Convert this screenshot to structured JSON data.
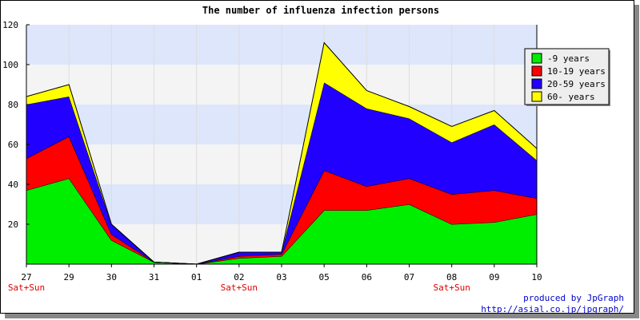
{
  "chart_data": {
    "type": "area",
    "stacked": true,
    "title": "The number of influenza infection persons",
    "xlabel": "",
    "ylabel": "",
    "categories": [
      "27",
      "29",
      "30",
      "31",
      "01",
      "02",
      "03",
      "05",
      "06",
      "07",
      "08",
      "09",
      "10"
    ],
    "category_notes": [
      "Sat+Sun",
      "",
      "",
      "",
      "",
      "Sat+Sun",
      "",
      "",
      "",
      "",
      "Sat+Sun",
      "",
      ""
    ],
    "y_ticks": [
      20,
      40,
      60,
      80,
      100,
      120
    ],
    "ylim": [
      0,
      120
    ],
    "grid": true,
    "legend_position": "right",
    "series": [
      {
        "name": "-9 years",
        "color": "#00ee00",
        "values": [
          37,
          43,
          12,
          1,
          0,
          3,
          4,
          27,
          27,
          30,
          20,
          21,
          25
        ]
      },
      {
        "name": "10-19 years",
        "color": "#ff0000",
        "values": [
          16,
          21,
          3,
          0,
          0,
          1,
          1,
          20,
          12,
          13,
          15,
          16,
          8
        ]
      },
      {
        "name": "20-59 years",
        "color": "#2200ff",
        "values": [
          27,
          20,
          5,
          0,
          0,
          2,
          1,
          44,
          39,
          30,
          26,
          33,
          19
        ]
      },
      {
        "name": "60- years",
        "color": "#ffff00",
        "values": [
          4,
          6,
          0,
          0,
          0,
          0,
          0,
          20,
          9,
          6,
          8,
          7,
          6
        ]
      }
    ],
    "band_colors": [
      "#dde6fb",
      "#f4f4f4"
    ]
  },
  "credit": {
    "line1": "produced by JpGraph",
    "line2": "http://asial.co.jp/jpgraph/"
  }
}
